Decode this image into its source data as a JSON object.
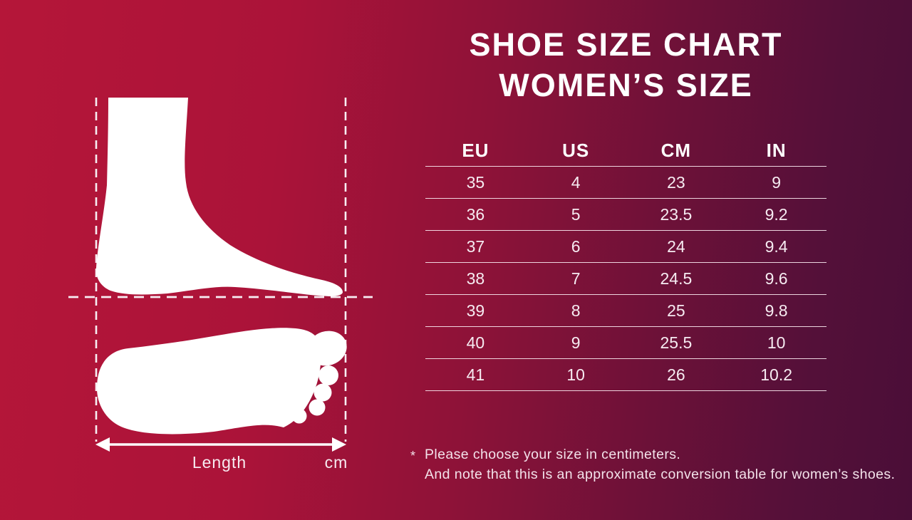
{
  "title": {
    "line1": "SHOE SIZE CHART",
    "line2": "WOMEN’S SIZE"
  },
  "table": {
    "headers": [
      "EU",
      "US",
      "CM",
      "IN"
    ],
    "rows": [
      [
        "35",
        "4",
        "23",
        "9"
      ],
      [
        "36",
        "5",
        "23.5",
        "9.2"
      ],
      [
        "37",
        "6",
        "24",
        "9.4"
      ],
      [
        "38",
        "7",
        "24.5",
        "9.6"
      ],
      [
        "39",
        "8",
        "25",
        "9.8"
      ],
      [
        "40",
        "9",
        "25.5",
        "10"
      ],
      [
        "41",
        "10",
        "26",
        "10.2"
      ]
    ]
  },
  "diagram": {
    "length_label": "Length",
    "unit_label": "cm"
  },
  "footnote": {
    "marker": "*",
    "line1": "Please choose your size in centimeters.",
    "line2": "And note that this is an approximate conversion table for women’s shoes."
  },
  "colors": {
    "background_left": "#b51639",
    "background_right": "#4a0e37",
    "foot_silhouette": "#ffffff",
    "table_line": "#f8e6ee",
    "text": "#ffffff"
  },
  "chart_data": {
    "type": "table",
    "title": "SHOE SIZE CHART WOMEN’S SIZE",
    "columns": [
      "EU",
      "US",
      "CM",
      "IN"
    ],
    "rows": [
      [
        35,
        4,
        23,
        9
      ],
      [
        36,
        5,
        23.5,
        9.2
      ],
      [
        37,
        6,
        24,
        9.4
      ],
      [
        38,
        7,
        24.5,
        9.6
      ],
      [
        39,
        8,
        25,
        9.8
      ],
      [
        40,
        9,
        25.5,
        10
      ],
      [
        41,
        10,
        26,
        10.2
      ]
    ],
    "notes": [
      "Please choose your size in centimeters.",
      "And note that this is an approximate conversion table for women’s shoes."
    ]
  }
}
